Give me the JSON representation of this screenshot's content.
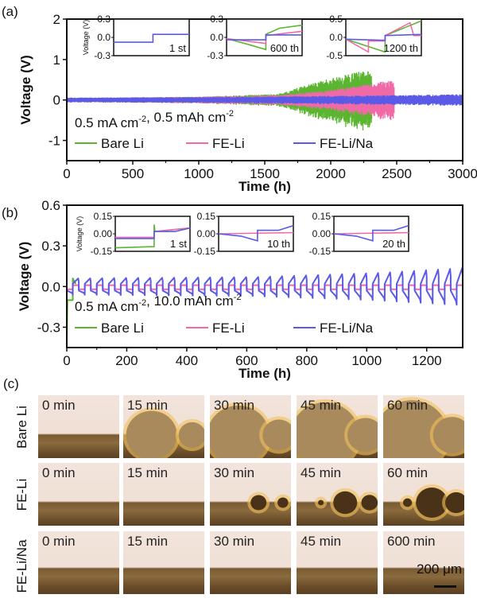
{
  "chart_data": [
    {
      "panel_label": "(a)",
      "type": "line",
      "xlabel": "Time (h)",
      "ylabel": "Voltage (V)",
      "xlim": [
        0,
        3000
      ],
      "ylim": [
        -1.5,
        2
      ],
      "xticks": [
        "0",
        "500",
        "1000",
        "1500",
        "2000",
        "2500",
        "3000"
      ],
      "yticks": [
        "2",
        "1",
        "0",
        "-1"
      ],
      "annotation": "0.5 mA cm⁻², 0.5 mAh cm⁻²",
      "legend": [
        "Bare Li",
        "FE-Li",
        "FE-Li/Na"
      ],
      "legend_placement": "bottom-left",
      "series": [
        {
          "name": "Bare Li",
          "color": "#5cb531",
          "end_time": 2310,
          "amplitude_envelope": [
            [
              0,
              0.05
            ],
            [
              1000,
              0.08
            ],
            [
              1600,
              0.15
            ],
            [
              1900,
              0.45
            ],
            [
              2200,
              0.7
            ],
            [
              2300,
              0.75
            ]
          ]
        },
        {
          "name": "FE-Li",
          "color": "#f06aa8",
          "end_time": 2480,
          "amplitude_envelope": [
            [
              0,
              0.05
            ],
            [
              1000,
              0.08
            ],
            [
              1600,
              0.12
            ],
            [
              2000,
              0.25
            ],
            [
              2300,
              0.4
            ],
            [
              2480,
              0.5
            ]
          ]
        },
        {
          "name": "FE-Li/Na",
          "color": "#5a5ae6",
          "end_time": 3000,
          "amplitude_envelope": [
            [
              0,
              0.06
            ],
            [
              1000,
              0.07
            ],
            [
              2000,
              0.1
            ],
            [
              3000,
              0.14
            ]
          ]
        }
      ],
      "insets": [
        {
          "label": "1 st",
          "ylim": [
            -0.3,
            0.3
          ],
          "yticks": [
            "0.3",
            "0.0",
            "-0.3"
          ],
          "ylabel": "Voltage (V)"
        },
        {
          "label": "600 th",
          "ylim": [
            -0.3,
            0.3
          ],
          "yticks": [
            "0.3",
            "0.0",
            "-0.3"
          ]
        },
        {
          "label": "1200 th",
          "ylim": [
            -0.5,
            0.5
          ],
          "yticks": [
            "0.5",
            "0.0",
            "-0.5"
          ]
        }
      ]
    },
    {
      "panel_label": "(b)",
      "type": "line",
      "xlabel": "Time (h)",
      "ylabel": "Voltage (V)",
      "xlim": [
        0,
        1320
      ],
      "ylim": [
        -0.45,
        0.6
      ],
      "xticks": [
        "0",
        "200",
        "400",
        "600",
        "800",
        "1000",
        "1200"
      ],
      "yticks": [
        "0.6",
        "0.3",
        "0.0",
        "-0.3"
      ],
      "annotation": "0.5 mA cm⁻², 10.0 mAh cm⁻²",
      "legend": [
        "Bare Li",
        "FE-Li",
        "FE-Li/Na"
      ],
      "legend_placement": "bottom-left",
      "cycle_period_h": 40,
      "series": [
        {
          "name": "Bare Li",
          "color": "#5cb531",
          "end_time": 30,
          "plating_v": -0.1,
          "stripping_v": 0.06,
          "initial_dip_v": -0.4
        },
        {
          "name": "FE-Li",
          "color": "#f06aa8",
          "end_time": 1320,
          "plating_v": -0.02,
          "stripping_v": 0.01
        },
        {
          "name": "FE-Li/Na",
          "color": "#5a5ae6",
          "end_time": 1320,
          "amplitude_envelope": [
            [
              0,
              0.06
            ],
            [
              600,
              0.07
            ],
            [
              1000,
              0.1
            ],
            [
              1320,
              0.14
            ]
          ]
        }
      ],
      "insets": [
        {
          "label": "1 st",
          "ylim": [
            -0.15,
            0.15
          ],
          "yticks": [
            "0.15",
            "0.00",
            "-0.15"
          ],
          "ylabel": "Voltage (V)"
        },
        {
          "label": "10 th",
          "ylim": [
            -0.15,
            0.15
          ],
          "yticks": [
            "0.15",
            "0.00",
            "-0.15"
          ]
        },
        {
          "label": "20 th",
          "ylim": [
            -0.15,
            0.15
          ],
          "yticks": [
            "0.15",
            "0.00",
            "-0.15"
          ]
        }
      ]
    }
  ],
  "panel_c": {
    "label": "(c)",
    "scale_bar": "200 μm",
    "rows": [
      {
        "name": "Bare Li",
        "frames": [
          "0 min",
          "15 min",
          "30 min",
          "45 min",
          "60 min"
        ],
        "dendrite_growth": [
          0,
          0.5,
          0.75,
          0.9,
          1.0
        ]
      },
      {
        "name": "FE-Li",
        "frames": [
          "0 min",
          "15 min",
          "30 min",
          "45 min",
          "60 min"
        ],
        "dendrite_growth": [
          0,
          0,
          0.2,
          0.45,
          0.7
        ]
      },
      {
        "name": "FE-Li/Na",
        "frames": [
          "0 min",
          "15 min",
          "30 min",
          "45 min",
          "600 min"
        ],
        "dendrite_growth": [
          0,
          0,
          0,
          0,
          0
        ]
      }
    ]
  }
}
